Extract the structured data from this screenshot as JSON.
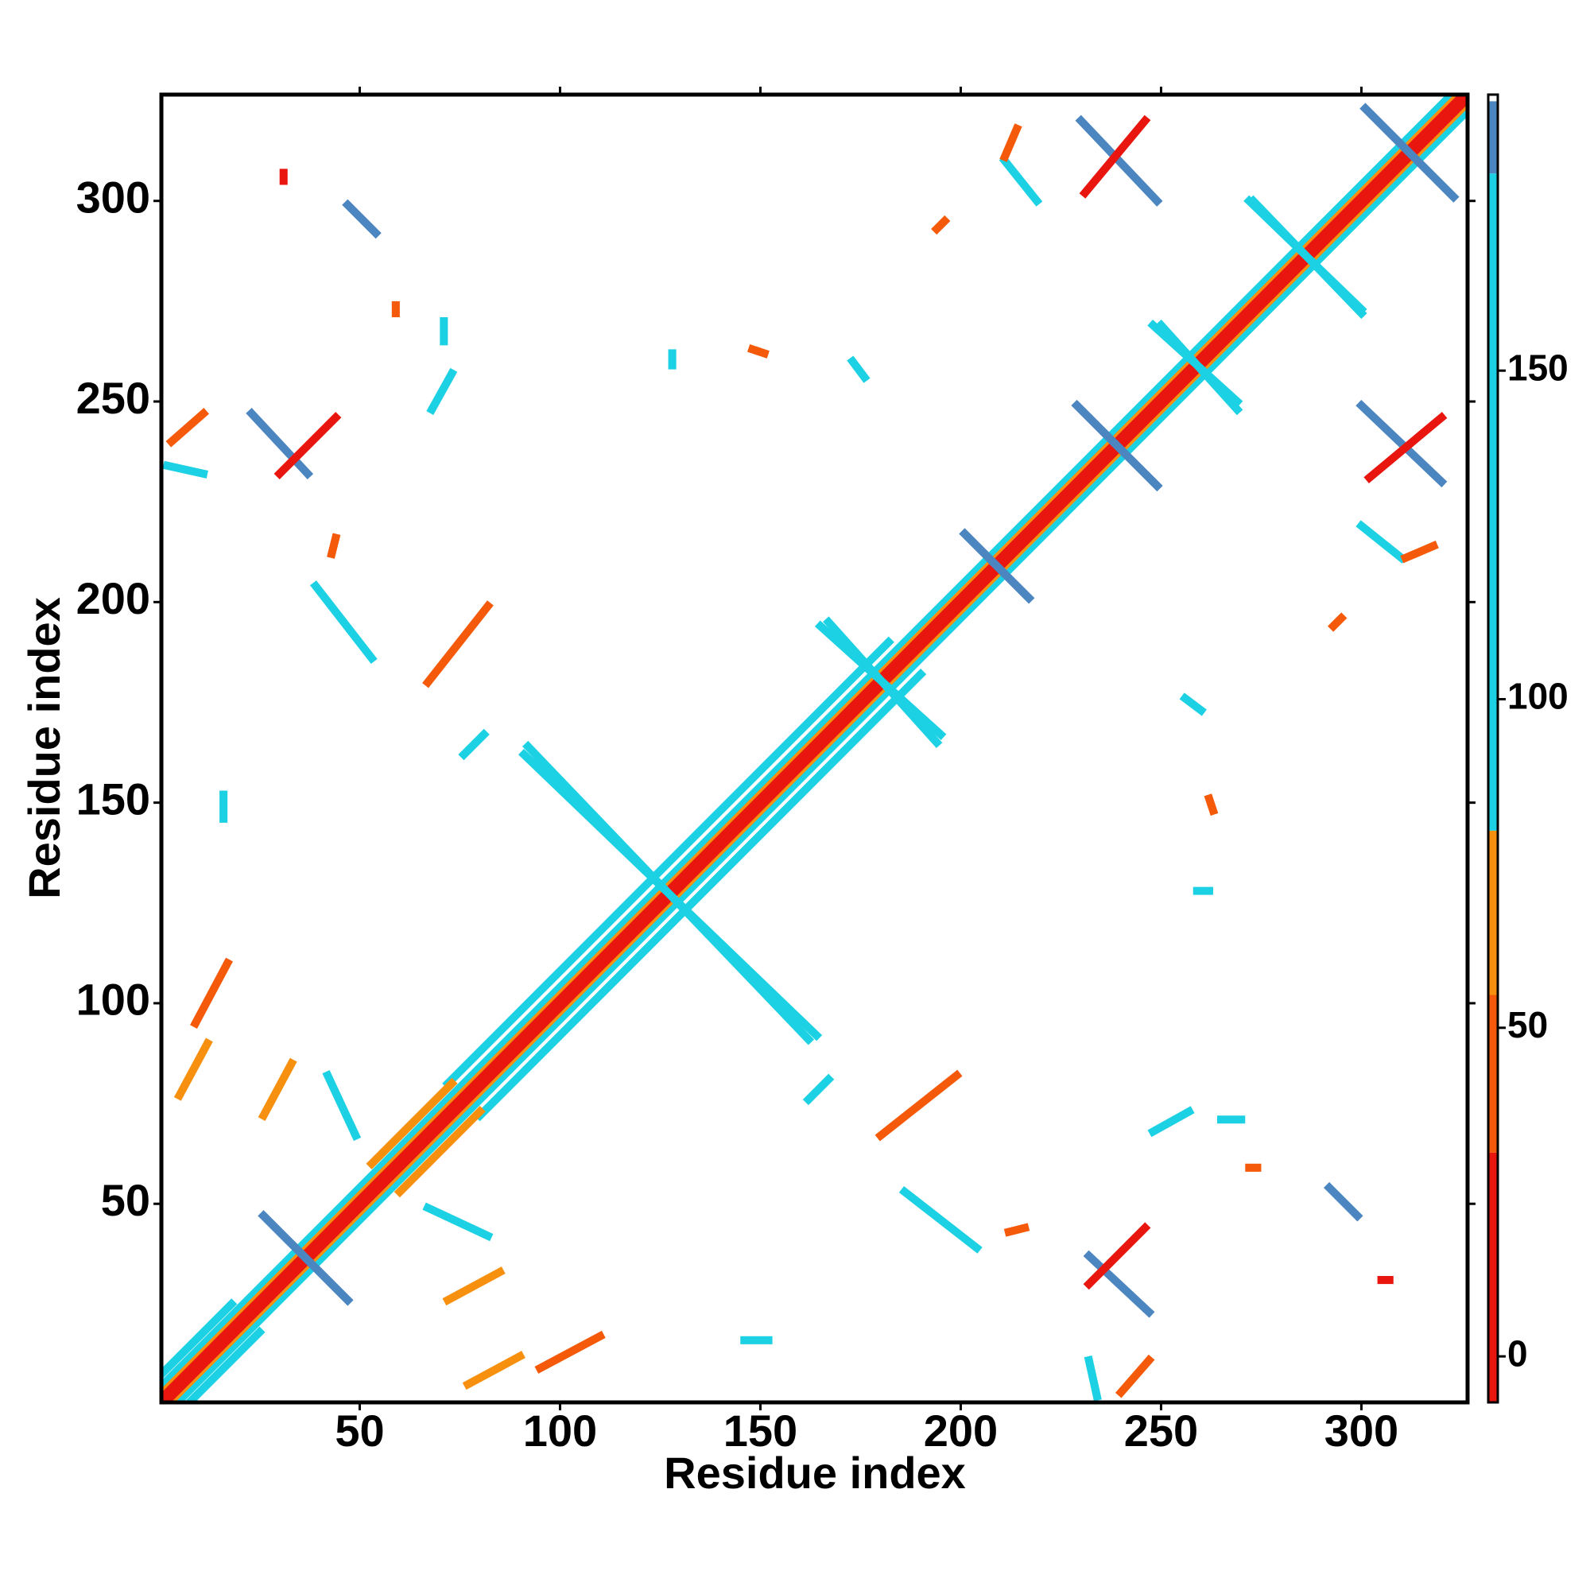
{
  "chart_data": {
    "type": "heatmap",
    "xlabel": "Residue index",
    "ylabel": "Residue index",
    "xlim": [
      0.5,
      326.5
    ],
    "ylim": [
      0.5,
      326.5
    ],
    "xticks": [
      50,
      100,
      150,
      200,
      250,
      300
    ],
    "yticks": [
      50,
      100,
      150,
      200,
      250,
      300
    ],
    "symmetric": true,
    "colorbar": {
      "lim": [
        -7,
        192
      ],
      "ticks": [
        0,
        50,
        100,
        150
      ],
      "bands": [
        {
          "from": -7,
          "to": 31,
          "color": "#e8160e"
        },
        {
          "from": 31,
          "to": 55,
          "color": "#f55a0a"
        },
        {
          "from": 55,
          "to": 80,
          "color": "#f7900f"
        },
        {
          "from": 80,
          "to": 180,
          "color": "#1cd1e3"
        },
        {
          "from": 180,
          "to": 191,
          "color": "#4c86c0"
        },
        {
          "from": 191,
          "to": 192,
          "color": "#ffffff"
        }
      ]
    },
    "contacts": [
      {
        "from": [
          8,
          1
        ],
        "to": [
          25,
          18
        ],
        "value": 100
      },
      {
        "from": [
          80,
          72
        ],
        "to": [
          190,
          182
        ],
        "value": 100
      },
      {
        "from": [
          60,
          53
        ],
        "to": [
          80,
          73
        ],
        "value": 60
      },
      {
        "from": [
          5,
          1
        ],
        "to": [
          326,
          322
        ],
        "value": 100
      },
      {
        "from": [
          3,
          1
        ],
        "to": [
          326,
          324
        ],
        "value": 60
      },
      {
        "from": [
          2,
          1
        ],
        "to": [
          326,
          325
        ],
        "value": 10
      },
      {
        "from": [
          26,
          47
        ],
        "to": [
          47,
          26
        ],
        "value": 185
      },
      {
        "from": [
          229,
          249
        ],
        "to": [
          249,
          229
        ],
        "value": 185
      },
      {
        "from": [
          201,
          217
        ],
        "to": [
          217,
          201
        ],
        "value": 185
      },
      {
        "from": [
          301,
          323
        ],
        "to": [
          323,
          301
        ],
        "value": 185
      },
      {
        "from": [
          91,
          162
        ],
        "to": [
          164,
          92
        ],
        "value": 110
      },
      {
        "from": [
          248,
          269
        ],
        "to": [
          269,
          250
        ],
        "value": 110
      },
      {
        "from": [
          272,
          300
        ],
        "to": [
          300,
          273
        ],
        "value": 110
      },
      {
        "from": [
          165,
          194
        ],
        "to": [
          195,
          167
        ],
        "value": 110
      },
      {
        "from": [
          232,
          37
        ],
        "to": [
          247,
          23
        ],
        "value": 185
      },
      {
        "from": [
          232,
          30
        ],
        "to": [
          246,
          44
        ],
        "value": 10
      },
      {
        "from": [
          186,
          53
        ],
        "to": [
          204,
          39
        ],
        "value": 170
      },
      {
        "from": [
          292,
          54
        ],
        "to": [
          299,
          47
        ],
        "value": 185
      },
      {
        "from": [
          67,
          49
        ],
        "to": [
          82,
          42
        ],
        "value": 110
      },
      {
        "from": [
          265,
          71
        ],
        "to": [
          270,
          71
        ],
        "value": 100
      },
      {
        "from": [
          248,
          68
        ],
        "to": [
          257,
          73
        ],
        "value": 120
      },
      {
        "from": [
          180,
          67
        ],
        "to": [
          199,
          82
        ],
        "value": 55
      },
      {
        "from": [
          72,
          26
        ],
        "to": [
          85,
          33
        ],
        "value": 60
      },
      {
        "from": [
          95,
          9
        ],
        "to": [
          110,
          17
        ],
        "value": 55
      },
      {
        "from": [
          240,
          3
        ],
        "to": [
          247,
          11
        ],
        "value": 45
      },
      {
        "from": [
          232,
          11
        ],
        "to": [
          234,
          2
        ],
        "value": 110
      },
      {
        "from": [
          146,
          16
        ],
        "to": [
          152,
          16
        ],
        "value": 110
      },
      {
        "from": [
          77,
          5
        ],
        "to": [
          90,
          12
        ],
        "value": 70
      },
      {
        "from": [
          272,
          59
        ],
        "to": [
          274,
          59
        ],
        "value": 45
      },
      {
        "from": [
          305,
          31
        ],
        "to": [
          307,
          31
        ],
        "value": 10
      },
      {
        "from": [
          212,
          43
        ],
        "to": [
          216,
          44
        ],
        "value": 55
      },
      {
        "from": [
          162,
          76
        ],
        "to": [
          167,
          81
        ],
        "value": 110
      },
      {
        "from": [
          256,
          176
        ],
        "to": [
          260,
          173
        ],
        "value": 110
      },
      {
        "from": [
          262,
          151
        ],
        "to": [
          263,
          148
        ],
        "value": 45
      },
      {
        "from": [
          259,
          128
        ],
        "to": [
          262,
          128
        ],
        "value": 110
      },
      {
        "from": [
          293,
          194
        ],
        "to": [
          295,
          196
        ],
        "value": 55
      },
      {
        "from": [
          300,
          249
        ],
        "to": [
          320,
          230
        ],
        "value": 185
      },
      {
        "from": [
          302,
          231
        ],
        "to": [
          320,
          246
        ],
        "value": 10
      },
      {
        "from": [
          300,
          219
        ],
        "to": [
          310,
          211
        ],
        "value": 170
      },
      {
        "from": [
          311,
          211
        ],
        "to": [
          318,
          214
        ],
        "value": 50
      }
    ]
  }
}
